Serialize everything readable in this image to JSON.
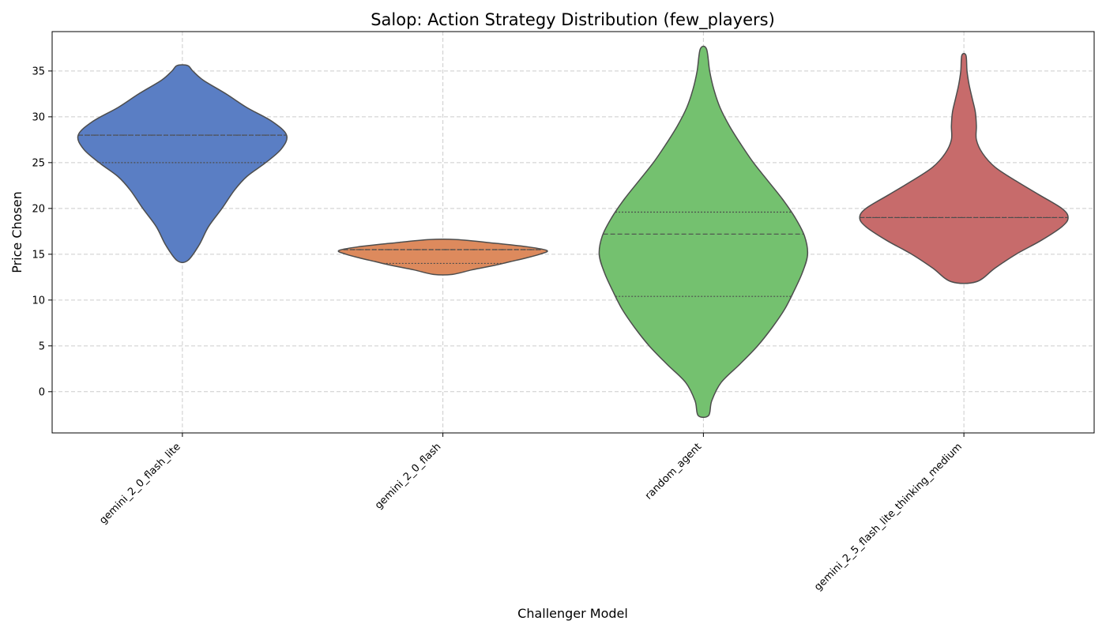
{
  "chart_data": {
    "type": "violin",
    "title": "Salop: Action Strategy Distribution (few_players)",
    "xlabel": "Challenger Model",
    "ylabel": "Price Chosen",
    "ylim": [
      -4.5,
      39.3
    ],
    "yticks": [
      0,
      5,
      10,
      15,
      20,
      25,
      30,
      35
    ],
    "grid": true,
    "inner": "quartile",
    "categories": [
      "gemini_2_0_flash_lite",
      "gemini_2_0_flash",
      "random_agent",
      "gemini_2_5_flash_lite_thinking_medium"
    ],
    "colors": [
      "#5a7ec4",
      "#dd8a5d",
      "#74c16f",
      "#c76b6b"
    ],
    "series": [
      {
        "category": "gemini_2_0_flash_lite",
        "min": 14.3,
        "max": 35.6,
        "quartiles": [
          25.0,
          28.0,
          28.0
        ],
        "density": [
          [
            14.3,
            0.05
          ],
          [
            16.0,
            0.16
          ],
          [
            18.0,
            0.25
          ],
          [
            20.0,
            0.38
          ],
          [
            22.0,
            0.5
          ],
          [
            23.5,
            0.62
          ],
          [
            25.0,
            0.8
          ],
          [
            26.5,
            0.95
          ],
          [
            28.0,
            1.0
          ],
          [
            29.5,
            0.86
          ],
          [
            31.0,
            0.62
          ],
          [
            32.5,
            0.42
          ],
          [
            34.0,
            0.2
          ],
          [
            35.0,
            0.1
          ],
          [
            35.6,
            0.05
          ]
        ]
      },
      {
        "category": "gemini_2_0_flash",
        "min": 12.8,
        "max": 16.6,
        "quartiles": [
          14.0,
          15.5,
          15.5
        ],
        "density": [
          [
            12.8,
            0.09
          ],
          [
            13.3,
            0.28
          ],
          [
            13.8,
            0.5
          ],
          [
            14.2,
            0.65
          ],
          [
            14.6,
            0.8
          ],
          [
            15.0,
            0.93
          ],
          [
            15.4,
            1.0
          ],
          [
            15.8,
            0.82
          ],
          [
            16.2,
            0.5
          ],
          [
            16.6,
            0.13
          ]
        ]
      },
      {
        "category": "random_agent",
        "min": -2.6,
        "max": 37.4,
        "quartiles": [
          10.4,
          17.2,
          19.6
        ],
        "density": [
          [
            -2.6,
            0.05
          ],
          [
            -1.0,
            0.08
          ],
          [
            1.0,
            0.17
          ],
          [
            3.0,
            0.35
          ],
          [
            5.0,
            0.52
          ],
          [
            7.0,
            0.66
          ],
          [
            9.0,
            0.78
          ],
          [
            11.0,
            0.87
          ],
          [
            13.0,
            0.95
          ],
          [
            15.0,
            1.0
          ],
          [
            17.0,
            0.97
          ],
          [
            19.0,
            0.88
          ],
          [
            21.0,
            0.76
          ],
          [
            23.0,
            0.62
          ],
          [
            25.0,
            0.48
          ],
          [
            27.0,
            0.36
          ],
          [
            29.0,
            0.25
          ],
          [
            31.0,
            0.16
          ],
          [
            33.0,
            0.1
          ],
          [
            35.0,
            0.06
          ],
          [
            37.4,
            0.03
          ]
        ]
      },
      {
        "category": "gemini_2_5_flash_lite_thinking_medium",
        "min": 12.0,
        "max": 36.7,
        "quartiles": [
          19.0,
          19.0,
          19.0
        ],
        "density": [
          [
            12.0,
            0.12
          ],
          [
            13.5,
            0.3
          ],
          [
            15.0,
            0.5
          ],
          [
            16.5,
            0.74
          ],
          [
            18.0,
            0.94
          ],
          [
            19.0,
            1.0
          ],
          [
            20.0,
            0.94
          ],
          [
            21.5,
            0.72
          ],
          [
            23.0,
            0.5
          ],
          [
            24.5,
            0.3
          ],
          [
            26.0,
            0.18
          ],
          [
            27.5,
            0.12
          ],
          [
            29.0,
            0.12
          ],
          [
            30.5,
            0.11
          ],
          [
            32.0,
            0.08
          ],
          [
            33.5,
            0.05
          ],
          [
            35.0,
            0.03
          ],
          [
            36.7,
            0.02
          ]
        ]
      }
    ]
  }
}
